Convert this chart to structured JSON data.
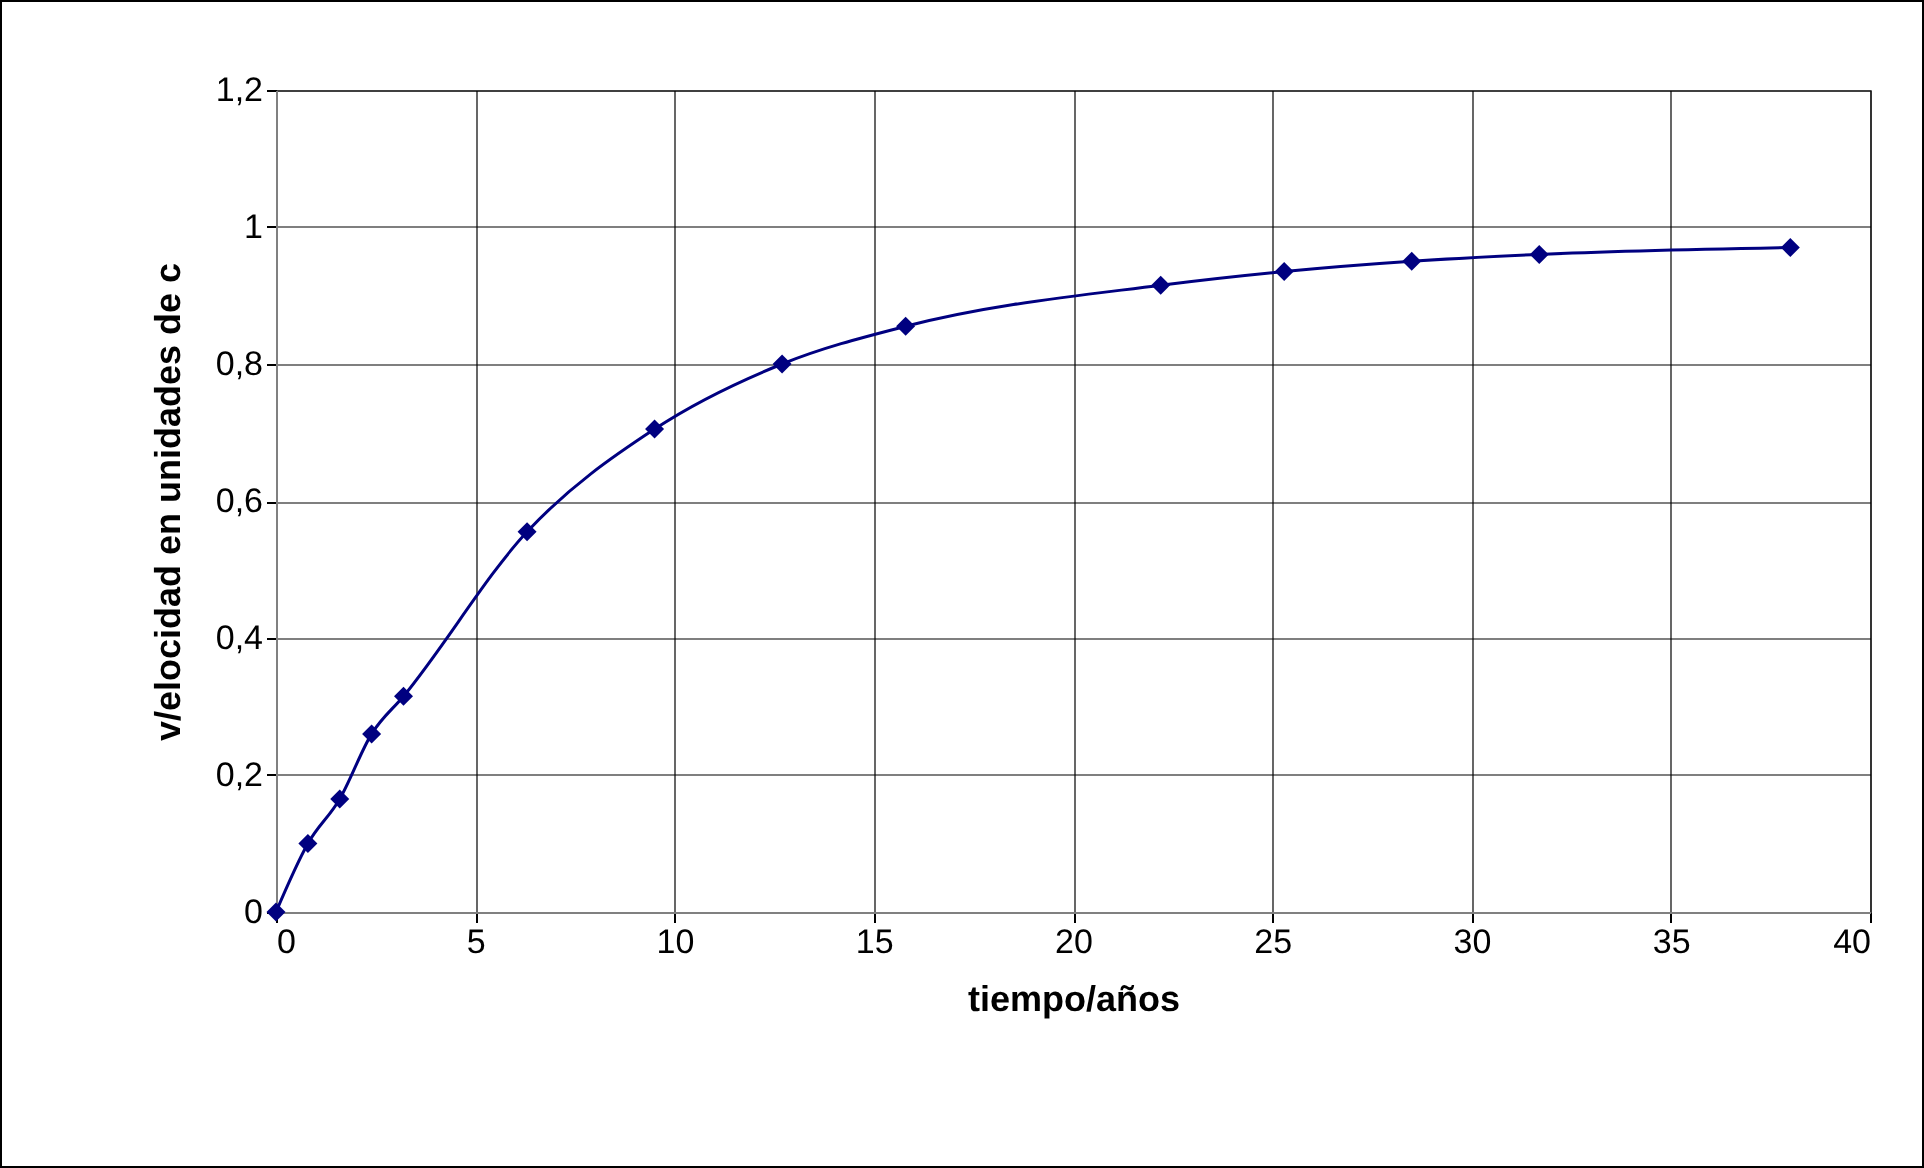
{
  "chart_data": {
    "type": "line",
    "xlabel": "tiempo/años",
    "ylabel": "v/elocidad en unidades de c",
    "x": [
      0,
      0.8,
      1.6,
      2.4,
      3.2,
      6.3,
      9.5,
      12.7,
      15.8,
      22.2,
      25.3,
      28.5,
      31.7,
      38
    ],
    "series": [
      {
        "color": "#000080",
        "values": [
          0,
          0.1,
          0.165,
          0.26,
          0.315,
          0.555,
          0.705,
          0.8,
          0.855,
          0.915,
          0.935,
          0.95,
          0.96,
          0.97
        ]
      }
    ],
    "xlim": [
      0,
      40
    ],
    "xticks": [
      0,
      5,
      10,
      15,
      20,
      25,
      30,
      35,
      40
    ],
    "ylim": [
      0,
      1.2
    ],
    "yticks": [
      0,
      {
        "value": 0.2,
        "label": "0,2"
      },
      {
        "value": 0.4,
        "label": "0,4"
      },
      {
        "value": 0.6,
        "label": "0,6"
      },
      {
        "value": 0.8,
        "label": "0,8"
      },
      1,
      {
        "value": 1.2,
        "label": "1,2"
      }
    ],
    "grid": true,
    "marker": "diamond",
    "line_style": "solid"
  }
}
